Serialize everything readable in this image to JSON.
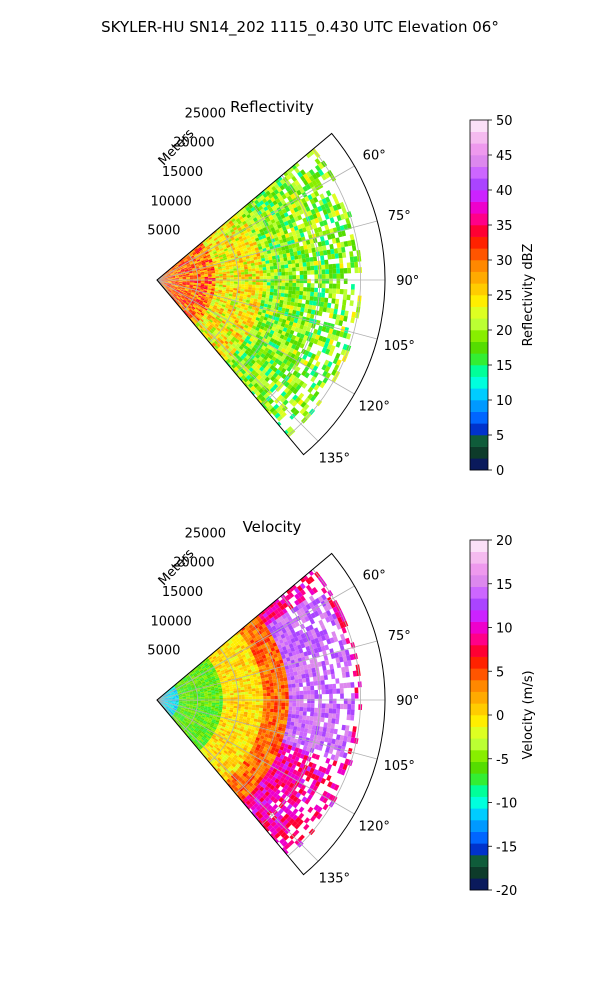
{
  "chart_data": {
    "type": "heatmap",
    "suptitle": "SKYLER-HU  SN14_202  1115_0.430 UTC Elevation 06°",
    "panels": [
      {
        "id": "reflectivity",
        "title": "Reflectivity",
        "radial_label": "Meters",
        "range_ticks": [
          5000,
          10000,
          15000,
          20000,
          25000
        ],
        "range_tick_labels": [
          "5000",
          "10000",
          "15000",
          "20000",
          "25000"
        ],
        "azimuth_ticks": [
          60,
          75,
          90,
          105,
          120,
          135
        ],
        "azimuth_tick_labels": [
          "60°",
          "75°",
          "90°",
          "105°",
          "120°",
          "135°"
        ],
        "azimuth_range": [
          50,
          140
        ],
        "range_max": 28000,
        "colorbar": {
          "label": "Reflectivity dBZ",
          "min": 0,
          "max": 50,
          "ticks": [
            0,
            5,
            10,
            15,
            20,
            25,
            30,
            35,
            40,
            45,
            50
          ],
          "tick_labels": [
            "0",
            "5",
            "10",
            "15",
            "20",
            "25",
            "30",
            "35",
            "40",
            "45",
            "50"
          ],
          "colors": [
            "#0a1a5c",
            "#0d3b2a",
            "#0f5c3a",
            "#0033cc",
            "#0066ff",
            "#0099ff",
            "#00ccff",
            "#00ffdd",
            "#00ff99",
            "#33ee33",
            "#55dd00",
            "#88ee00",
            "#bbff33",
            "#ddff22",
            "#ffee00",
            "#ffcc00",
            "#ffaa00",
            "#ff8800",
            "#ff5500",
            "#ff2200",
            "#ff0033",
            "#ff0088",
            "#ee00cc",
            "#cc22ff",
            "#aa44ff",
            "#cc66ff",
            "#dd88ee",
            "#ee99ee",
            "#f5bbf0",
            "#fbe0f8"
          ]
        },
        "field_regions": [
          {
            "az": [
              48,
              145
            ],
            "r": [
              0,
              7000
            ],
            "value": 30
          },
          {
            "az": [
              48,
              145
            ],
            "r": [
              7000,
              13000
            ],
            "value": 24
          },
          {
            "az": [
              48,
              145
            ],
            "r": [
              13000,
              25000
            ],
            "value": 19
          }
        ]
      },
      {
        "id": "velocity",
        "title": "Velocity",
        "radial_label": "Meters",
        "range_ticks": [
          5000,
          10000,
          15000,
          20000,
          25000
        ],
        "range_tick_labels": [
          "5000",
          "10000",
          "15000",
          "20000",
          "25000"
        ],
        "azimuth_ticks": [
          60,
          75,
          90,
          105,
          120,
          135
        ],
        "azimuth_tick_labels": [
          "60°",
          "75°",
          "90°",
          "105°",
          "120°",
          "135°"
        ],
        "azimuth_range": [
          50,
          140
        ],
        "range_max": 28000,
        "colorbar": {
          "label": "Velocity (m/s)",
          "min": -20,
          "max": 20,
          "ticks": [
            -20,
            -15,
            -10,
            -5,
            0,
            5,
            10,
            15,
            20
          ],
          "tick_labels": [
            "-20",
            "-15",
            "-10",
            "-5",
            "0",
            "5",
            "10",
            "15",
            "20"
          ],
          "colors": [
            "#0a1a5c",
            "#0d3b2a",
            "#0f5c3a",
            "#0033cc",
            "#0066ff",
            "#0099ff",
            "#00ccff",
            "#00ffdd",
            "#00ff99",
            "#33ee33",
            "#55dd00",
            "#88ee00",
            "#bbff33",
            "#ddff22",
            "#ffee00",
            "#ffcc00",
            "#ffaa00",
            "#ff8800",
            "#ff5500",
            "#ff2200",
            "#ff0033",
            "#ff0088",
            "#ee00cc",
            "#cc22ff",
            "#aa44ff",
            "#cc66ff",
            "#dd88ee",
            "#ee99ee",
            "#f5bbf0",
            "#fbe0f8"
          ]
        },
        "field_regions": [
          {
            "az": [
              48,
              145
            ],
            "r": [
              0,
              2500
            ],
            "value": -11
          },
          {
            "az": [
              48,
              145
            ],
            "r": [
              2500,
              8000
            ],
            "value": -6
          },
          {
            "az": [
              48,
              145
            ],
            "r": [
              8000,
              13000
            ],
            "value": 0
          },
          {
            "az": [
              48,
              145
            ],
            "r": [
              13000,
              16000
            ],
            "value": 4
          },
          {
            "az": [
              48,
              145
            ],
            "r": [
              16000,
              25000
            ],
            "value": 9
          },
          {
            "az": [
              56,
              108
            ],
            "r": [
              16000,
              24000
            ],
            "value": 14
          }
        ]
      }
    ]
  }
}
